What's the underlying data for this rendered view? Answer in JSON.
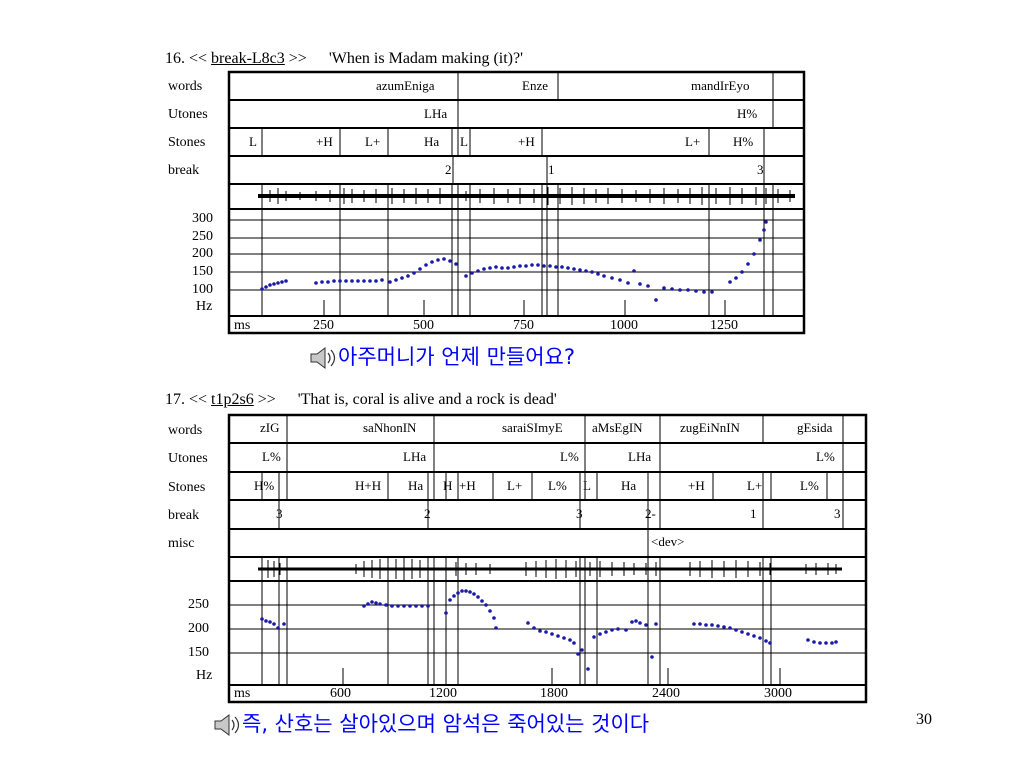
{
  "page_number": "30",
  "figures": [
    {
      "prefix": "16. <<",
      "link": "break-L8c3",
      "suffix": ">>",
      "gloss": "'When is Madam making (it)?'",
      "row_labels": [
        "words",
        "Utones",
        "Stones",
        "break"
      ],
      "y_axis_labels": [
        "300",
        "250",
        "200",
        "150",
        "100",
        "Hz"
      ],
      "x_axis_labels": [
        "ms",
        "250",
        "500",
        "750",
        "1000",
        "1250"
      ],
      "tiers": {
        "words": [
          "azumEniga",
          "Enze",
          "mandIrEyo"
        ],
        "utones": [
          "LHa",
          "H%"
        ],
        "stones": [
          "L",
          "+H",
          "L+",
          "Ha",
          "L",
          "+H",
          "L+",
          "H%"
        ],
        "break": [
          "2",
          "1",
          "3"
        ]
      },
      "caption": "아주머니가 언제 만들어요?"
    },
    {
      "prefix": "17. <<",
      "link": "t1p2s6",
      "suffix": ">>",
      "gloss": "'That is, coral is alive and a rock is dead'",
      "row_labels": [
        "words",
        "Utones",
        "Stones",
        "break",
        "misc"
      ],
      "y_axis_labels": [
        "250",
        "200",
        "150",
        "Hz"
      ],
      "x_axis_labels": [
        "ms",
        "600",
        "1200",
        "1800",
        "2400",
        "3000"
      ],
      "tiers": {
        "words": [
          "zIG",
          "saNhonIN",
          "saraiSImyE",
          "aMsEgIN",
          "zugEiNnIN",
          "gEsida"
        ],
        "utones": [
          "L%",
          "LHa",
          "L%",
          "LHa",
          "L%"
        ],
        "stones": [
          "H%",
          "H+H",
          "Ha",
          "H",
          "+H",
          "L+",
          "L%",
          "L",
          "Ha",
          "+H",
          "L+",
          "L%"
        ],
        "break": [
          "3",
          "2",
          "3",
          "2-",
          "1",
          "3"
        ],
        "misc": [
          "<dev>"
        ]
      },
      "caption": "즉, 산호는 살아있으며 암석은 죽어있는 것이다"
    }
  ]
}
